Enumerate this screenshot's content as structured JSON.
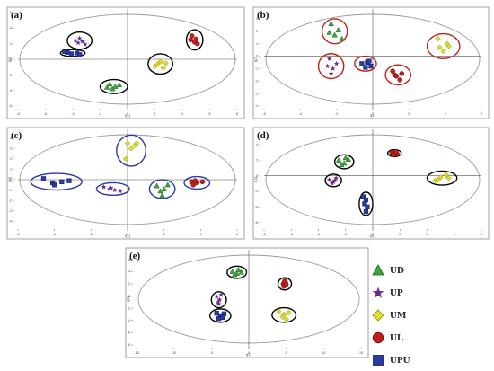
{
  "figure": {
    "legend": [
      {
        "label": "UD",
        "marker": "triangle",
        "color": "#3aa83a"
      },
      {
        "label": "UP",
        "marker": "star",
        "color": "#6a2a8a"
      },
      {
        "label": "UM",
        "marker": "diamond",
        "color": "#dede2a"
      },
      {
        "label": "UL",
        "marker": "circle",
        "color": "#c0201a"
      },
      {
        "label": "UPU",
        "marker": "square",
        "color": "#2a3aa0"
      }
    ]
  },
  "chart_data": [
    {
      "panel": "(a)",
      "type": "scatter",
      "xlabel": "t[1]",
      "ylabel": "t[2]",
      "xticks": [
        -8,
        -6,
        -4,
        -2,
        0,
        2,
        4,
        6,
        8
      ],
      "yticks": [
        -6,
        -4,
        -2,
        0,
        2,
        4,
        6
      ],
      "xlim": [
        -8,
        8
      ],
      "ylim": [
        -6,
        6
      ],
      "ellipse_color": "#000000",
      "series": [
        {
          "group": "UD",
          "points": [
            [
              -1.3,
              -3.2
            ],
            [
              -0.9,
              -3.5
            ],
            [
              -1.1,
              -3.8
            ],
            [
              -0.6,
              -3.3
            ],
            [
              -1.5,
              -3.6
            ]
          ]
        },
        {
          "group": "UP",
          "points": [
            [
              -3.8,
              2.4
            ],
            [
              -3.6,
              2.1
            ],
            [
              -3.3,
              2.3
            ],
            [
              -3.1,
              1.9
            ],
            [
              -3.5,
              2.7
            ]
          ]
        },
        {
          "group": "UM",
          "points": [
            [
              2.0,
              -0.9
            ],
            [
              2.4,
              -0.3
            ],
            [
              2.6,
              -1.1
            ],
            [
              2.2,
              -0.6
            ],
            [
              2.8,
              -0.5
            ]
          ]
        },
        {
          "group": "UL",
          "points": [
            [
              4.7,
              3.0
            ],
            [
              5.0,
              2.6
            ],
            [
              4.9,
              2.2
            ],
            [
              4.6,
              2.5
            ],
            [
              5.1,
              2.0
            ]
          ]
        },
        {
          "group": "UPU",
          "points": [
            [
              -4.4,
              0.9
            ],
            [
              -4.1,
              0.7
            ],
            [
              -3.7,
              0.8
            ],
            [
              -3.5,
              0.6
            ],
            [
              -4.6,
              1.0
            ]
          ]
        }
      ],
      "ellipses": [
        {
          "cx": -3.5,
          "cy": 2.4,
          "rx": 0.9,
          "ry": 1.1
        },
        {
          "cx": -4.0,
          "cy": 0.8,
          "rx": 0.9,
          "ry": 0.45
        },
        {
          "cx": -1.0,
          "cy": -3.5,
          "rx": 1.0,
          "ry": 0.9
        },
        {
          "cx": 2.4,
          "cy": -0.6,
          "rx": 0.9,
          "ry": 1.3
        },
        {
          "cx": 4.9,
          "cy": 2.5,
          "rx": 0.6,
          "ry": 1.3
        }
      ]
    },
    {
      "panel": "(b)",
      "type": "scatter",
      "xlabel": "t[1]",
      "ylabel": "t[2]",
      "xticks": [
        -6,
        -4,
        -2,
        0,
        2,
        4,
        6
      ],
      "yticks": [
        -4,
        -3,
        -2,
        -1,
        0,
        1,
        2,
        3
      ],
      "xlim": [
        -6,
        6
      ],
      "ylim": [
        -4,
        3.5
      ],
      "ellipse_color": "#c0201a",
      "series": [
        {
          "group": "UD",
          "points": [
            [
              -2.3,
              2.6
            ],
            [
              -1.9,
              2.1
            ],
            [
              -2.1,
              1.7
            ],
            [
              -1.7,
              1.4
            ],
            [
              -2.4,
              1.9
            ]
          ]
        },
        {
          "group": "UP",
          "points": [
            [
              -2.4,
              -0.2
            ],
            [
              -2.0,
              -0.6
            ],
            [
              -2.2,
              -1.0
            ],
            [
              -2.3,
              -1.4
            ],
            [
              -2.5,
              -0.8
            ]
          ]
        },
        {
          "group": "UM",
          "points": [
            [
              3.6,
              1.4
            ],
            [
              4.1,
              1.0
            ],
            [
              3.9,
              0.4
            ],
            [
              4.2,
              0.8
            ],
            [
              3.7,
              0.7
            ]
          ]
        },
        {
          "group": "UL",
          "points": [
            [
              1.1,
              -1.2
            ],
            [
              1.3,
              -1.6
            ],
            [
              1.6,
              -1.4
            ],
            [
              1.5,
              -1.9
            ],
            [
              1.2,
              -1.5
            ]
          ]
        },
        {
          "group": "UPU",
          "points": [
            [
              -0.6,
              -0.6
            ],
            [
              -0.3,
              -0.5
            ],
            [
              -0.1,
              -0.8
            ],
            [
              -0.4,
              -0.9
            ],
            [
              -0.2,
              -0.4
            ]
          ]
        }
      ],
      "ellipses": [
        {
          "cx": -2.1,
          "cy": 2.0,
          "rx": 0.7,
          "ry": 1.0
        },
        {
          "cx": -2.3,
          "cy": -0.8,
          "rx": 0.7,
          "ry": 1.0
        },
        {
          "cx": -0.4,
          "cy": -0.6,
          "rx": 0.6,
          "ry": 0.6
        },
        {
          "cx": 1.4,
          "cy": -1.5,
          "rx": 0.7,
          "ry": 0.8
        },
        {
          "cx": 3.9,
          "cy": 0.8,
          "rx": 0.9,
          "ry": 1.0
        }
      ]
    },
    {
      "panel": "(c)",
      "type": "scatter",
      "xlabel": "t[1]",
      "ylabel": "t[2]",
      "xticks": [
        -6,
        -4,
        -2,
        0,
        2,
        4,
        6
      ],
      "yticks": [
        -4,
        -3,
        -2,
        -1,
        0,
        1,
        2,
        3,
        4
      ],
      "xlim": [
        -6,
        6
      ],
      "ylim": [
        -4.5,
        4.5
      ],
      "ellipse_color": "#2a3aa0",
      "series": [
        {
          "group": "UD",
          "points": [
            [
              1.6,
              -0.6
            ],
            [
              2.0,
              -0.9
            ],
            [
              2.2,
              -0.5
            ],
            [
              1.8,
              -1.1
            ],
            [
              1.9,
              -1.5
            ]
          ]
        },
        {
          "group": "UP",
          "points": [
            [
              -1.3,
              -0.7
            ],
            [
              -1.0,
              -0.9
            ],
            [
              -0.7,
              -1.0
            ],
            [
              -0.4,
              -1.1
            ],
            [
              -0.9,
              -0.8
            ]
          ]
        },
        {
          "group": "UM",
          "points": [
            [
              0.0,
              3.5
            ],
            [
              0.4,
              3.3
            ],
            [
              -0.1,
              2.0
            ],
            [
              0.2,
              3.0
            ],
            [
              0.5,
              3.5
            ]
          ]
        },
        {
          "group": "UL",
          "points": [
            [
              3.5,
              -0.2
            ],
            [
              3.8,
              -0.3
            ],
            [
              3.6,
              -0.5
            ],
            [
              4.1,
              -0.2
            ],
            [
              3.7,
              -0.1
            ]
          ]
        },
        {
          "group": "UPU",
          "points": [
            [
              -4.6,
              0.1
            ],
            [
              -4.1,
              -0.3
            ],
            [
              -3.6,
              -0.2
            ],
            [
              -3.2,
              -0.1
            ],
            [
              -4.0,
              -0.5
            ]
          ]
        }
      ],
      "ellipses": [
        {
          "cx": -3.9,
          "cy": -0.2,
          "rx": 1.4,
          "ry": 0.8
        },
        {
          "cx": -0.8,
          "cy": -0.9,
          "rx": 0.9,
          "ry": 0.6
        },
        {
          "cx": 0.2,
          "cy": 2.8,
          "rx": 0.8,
          "ry": 1.5
        },
        {
          "cx": 1.9,
          "cy": -0.9,
          "rx": 0.7,
          "ry": 0.9
        },
        {
          "cx": 3.8,
          "cy": -0.3,
          "rx": 0.7,
          "ry": 0.6
        }
      ]
    },
    {
      "panel": "(d)",
      "type": "scatter",
      "xlabel": "t[1]",
      "ylabel": "t[2]",
      "xticks": [
        -8,
        -6,
        -4,
        -2,
        0,
        2,
        4,
        6,
        8
      ],
      "yticks": [
        -6,
        -4,
        -2,
        0,
        2,
        4
      ],
      "xlim": [
        -8,
        8
      ],
      "ylim": [
        -6.5,
        5.5
      ],
      "ellipse_color": "#000000",
      "series": [
        {
          "group": "UD",
          "points": [
            [
              -2.5,
              2.0
            ],
            [
              -2.1,
              1.6
            ],
            [
              -1.8,
              2.1
            ],
            [
              -2.3,
              1.4
            ],
            [
              -2.0,
              2.3
            ]
          ]
        },
        {
          "group": "UP",
          "points": [
            [
              -3.2,
              -0.5
            ],
            [
              -2.9,
              -0.8
            ],
            [
              -2.7,
              -0.3
            ],
            [
              -3.0,
              -1.0
            ],
            [
              -2.8,
              -0.6
            ]
          ]
        },
        {
          "group": "UM",
          "points": [
            [
              4.6,
              -0.6
            ],
            [
              5.0,
              -0.2
            ],
            [
              5.4,
              0.1
            ],
            [
              5.6,
              -0.3
            ],
            [
              4.8,
              -0.5
            ]
          ]
        },
        {
          "group": "UL",
          "points": [
            [
              1.4,
              2.9
            ],
            [
              1.6,
              3.0
            ],
            [
              1.8,
              2.8
            ],
            [
              1.5,
              2.7
            ],
            [
              1.7,
              3.1
            ]
          ]
        },
        {
          "group": "UPU",
          "points": [
            [
              -0.7,
              -2.7
            ],
            [
              -0.5,
              -3.1
            ],
            [
              -0.6,
              -3.6
            ],
            [
              -0.4,
              -4.0
            ],
            [
              -0.5,
              -4.6
            ]
          ]
        }
      ],
      "ellipses": [
        {
          "cx": -2.1,
          "cy": 1.8,
          "rx": 0.7,
          "ry": 0.9
        },
        {
          "cx": -2.9,
          "cy": -0.6,
          "rx": 0.6,
          "ry": 0.8
        },
        {
          "cx": 1.6,
          "cy": 2.9,
          "rx": 0.5,
          "ry": 0.45
        },
        {
          "cx": 5.1,
          "cy": -0.3,
          "rx": 1.1,
          "ry": 0.9
        },
        {
          "cx": -0.5,
          "cy": -3.6,
          "rx": 0.5,
          "ry": 1.5
        }
      ]
    },
    {
      "panel": "(e)",
      "type": "scatter",
      "xlabel": "t[1]",
      "ylabel": "t[2]",
      "xticks": [
        -15,
        -10,
        -5,
        0,
        5,
        10,
        15
      ],
      "yticks": [
        -8,
        -6,
        -4,
        -2,
        0,
        2,
        4,
        6
      ],
      "xlim": [
        -15,
        15
      ],
      "ylim": [
        -8,
        7
      ],
      "ellipse_color": "#000000",
      "series": [
        {
          "group": "UD",
          "points": [
            [
              -2.2,
              4.0
            ],
            [
              -1.6,
              3.7
            ],
            [
              -1.0,
              3.9
            ],
            [
              -1.4,
              4.3
            ],
            [
              -1.9,
              3.5
            ]
          ]
        },
        {
          "group": "UP",
          "points": [
            [
              -4.3,
              -0.1
            ],
            [
              -3.9,
              -0.6
            ],
            [
              -4.1,
              -1.0
            ],
            [
              -3.7,
              0.2
            ],
            [
              -4.0,
              -1.3
            ]
          ]
        },
        {
          "group": "UM",
          "points": [
            [
              4.0,
              -2.5
            ],
            [
              4.7,
              -3.0
            ],
            [
              5.3,
              -2.7
            ],
            [
              4.5,
              -3.4
            ],
            [
              5.0,
              -3.8
            ]
          ]
        },
        {
          "group": "UL",
          "points": [
            [
              4.6,
              2.0
            ],
            [
              4.9,
              2.3
            ],
            [
              4.7,
              1.6
            ],
            [
              5.0,
              1.9
            ],
            [
              4.8,
              2.5
            ]
          ]
        },
        {
          "group": "UPU",
          "points": [
            [
              -4.3,
              -2.8
            ],
            [
              -3.8,
              -3.2
            ],
            [
              -3.3,
              -2.9
            ],
            [
              -4.0,
              -3.7
            ],
            [
              -3.5,
              -3.5
            ]
          ]
        }
      ],
      "ellipses": [
        {
          "cx": -1.6,
          "cy": 3.9,
          "rx": 1.3,
          "ry": 1.0
        },
        {
          "cx": -4.0,
          "cy": -0.6,
          "rx": 1.0,
          "ry": 1.3
        },
        {
          "cx": -3.8,
          "cy": -3.2,
          "rx": 1.4,
          "ry": 1.1
        },
        {
          "cx": 4.8,
          "cy": 2.0,
          "rx": 0.9,
          "ry": 1.0
        },
        {
          "cx": 4.7,
          "cy": -3.1,
          "rx": 1.6,
          "ry": 1.2
        }
      ]
    }
  ]
}
